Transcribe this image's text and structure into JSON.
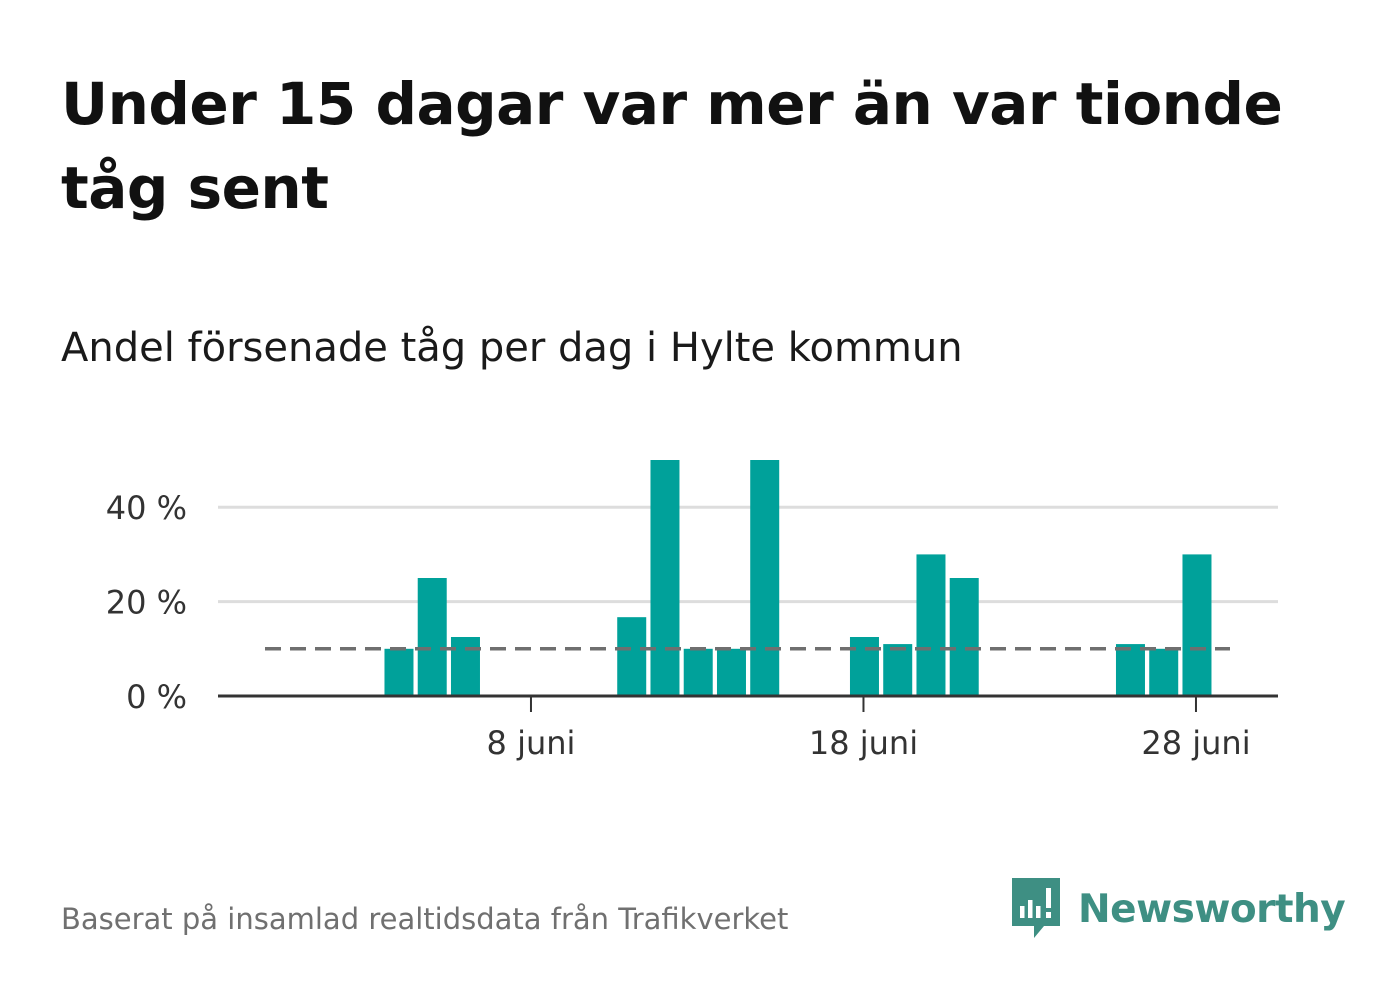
{
  "title": "Under 15 dagar var mer än var tionde tåg sent",
  "subtitle": "Andel försenade tåg per dag i Hylte kommun",
  "source": "Baserat på insamlad realtidsdata från Trafikverket",
  "brand": {
    "name": "Newsworthy",
    "icon": "newsworthy-logo-icon",
    "color": "#3e8f83"
  },
  "colors": {
    "bar": "#00a19a",
    "reference_line": "#6f6f6f",
    "grid": "#dddddd",
    "axis": "#333333"
  },
  "chart_data": {
    "type": "bar",
    "x_unit": "day of June",
    "x": [
      1,
      2,
      3,
      4,
      5,
      6,
      7,
      8,
      9,
      10,
      11,
      12,
      13,
      14,
      15,
      16,
      17,
      18,
      19,
      20,
      21,
      22,
      23,
      24,
      25,
      26,
      27,
      28,
      29,
      30
    ],
    "values": [
      null,
      null,
      null,
      10,
      25,
      12.5,
      null,
      null,
      null,
      null,
      16.7,
      50,
      10,
      10,
      50,
      null,
      null,
      12.5,
      11,
      30,
      25,
      null,
      null,
      null,
      null,
      11,
      10,
      30,
      null,
      null
    ],
    "reference_line": {
      "value": 10,
      "style": "dashed"
    },
    "ylim": [
      0,
      50
    ],
    "y_ticks": [
      {
        "value": 0,
        "label": "0 %"
      },
      {
        "value": 20,
        "label": "20 %"
      },
      {
        "value": 40,
        "label": "40 %"
      }
    ],
    "x_ticks": [
      {
        "value": 8,
        "label": "8 juni"
      },
      {
        "value": 18,
        "label": "18 juni"
      },
      {
        "value": 28,
        "label": "28 juni"
      }
    ],
    "grid": true,
    "legend": false
  }
}
